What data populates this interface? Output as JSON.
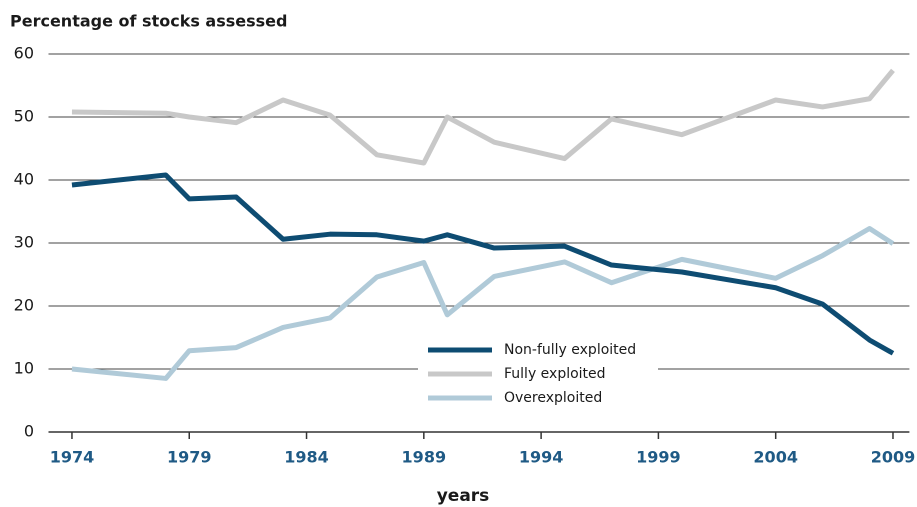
{
  "chart_data": {
    "type": "line",
    "y_label": "Percentage of stocks assessed",
    "x_label": "years",
    "x": [
      1974,
      1978,
      1979,
      1981,
      1983,
      1985,
      1987,
      1989,
      1990,
      1992,
      1995,
      1997,
      2000,
      2004,
      2006,
      2008,
      2009
    ],
    "series": [
      {
        "name": "Non-fully exploited",
        "color": "#0e4c72",
        "values": [
          39.2,
          40.8,
          37.0,
          37.3,
          30.6,
          31.4,
          31.3,
          30.3,
          31.3,
          29.2,
          29.5,
          26.5,
          25.4,
          22.9,
          20.3,
          14.6,
          12.5
        ]
      },
      {
        "name": "Fully exploited",
        "color": "#c8c8c8",
        "values": [
          50.8,
          50.6,
          50.0,
          49.1,
          52.7,
          50.3,
          44.0,
          42.7,
          50.0,
          46.0,
          43.4,
          49.7,
          47.2,
          52.7,
          51.6,
          52.9,
          57.4
        ]
      },
      {
        "name": "Overexploited",
        "color": "#b0cad8",
        "values": [
          10.0,
          8.5,
          12.9,
          13.4,
          16.6,
          18.1,
          24.6,
          26.9,
          18.6,
          24.7,
          27.0,
          23.7,
          27.4,
          24.4,
          28.0,
          32.3,
          29.9
        ]
      }
    ],
    "xlim": [
      1973,
      2009.7
    ],
    "ylim": [
      0,
      60
    ],
    "xticks": [
      1974,
      1979,
      1984,
      1989,
      1994,
      1999,
      2004,
      2009
    ],
    "yticks": [
      0,
      10,
      20,
      30,
      40,
      50,
      60
    ],
    "grid": true
  }
}
